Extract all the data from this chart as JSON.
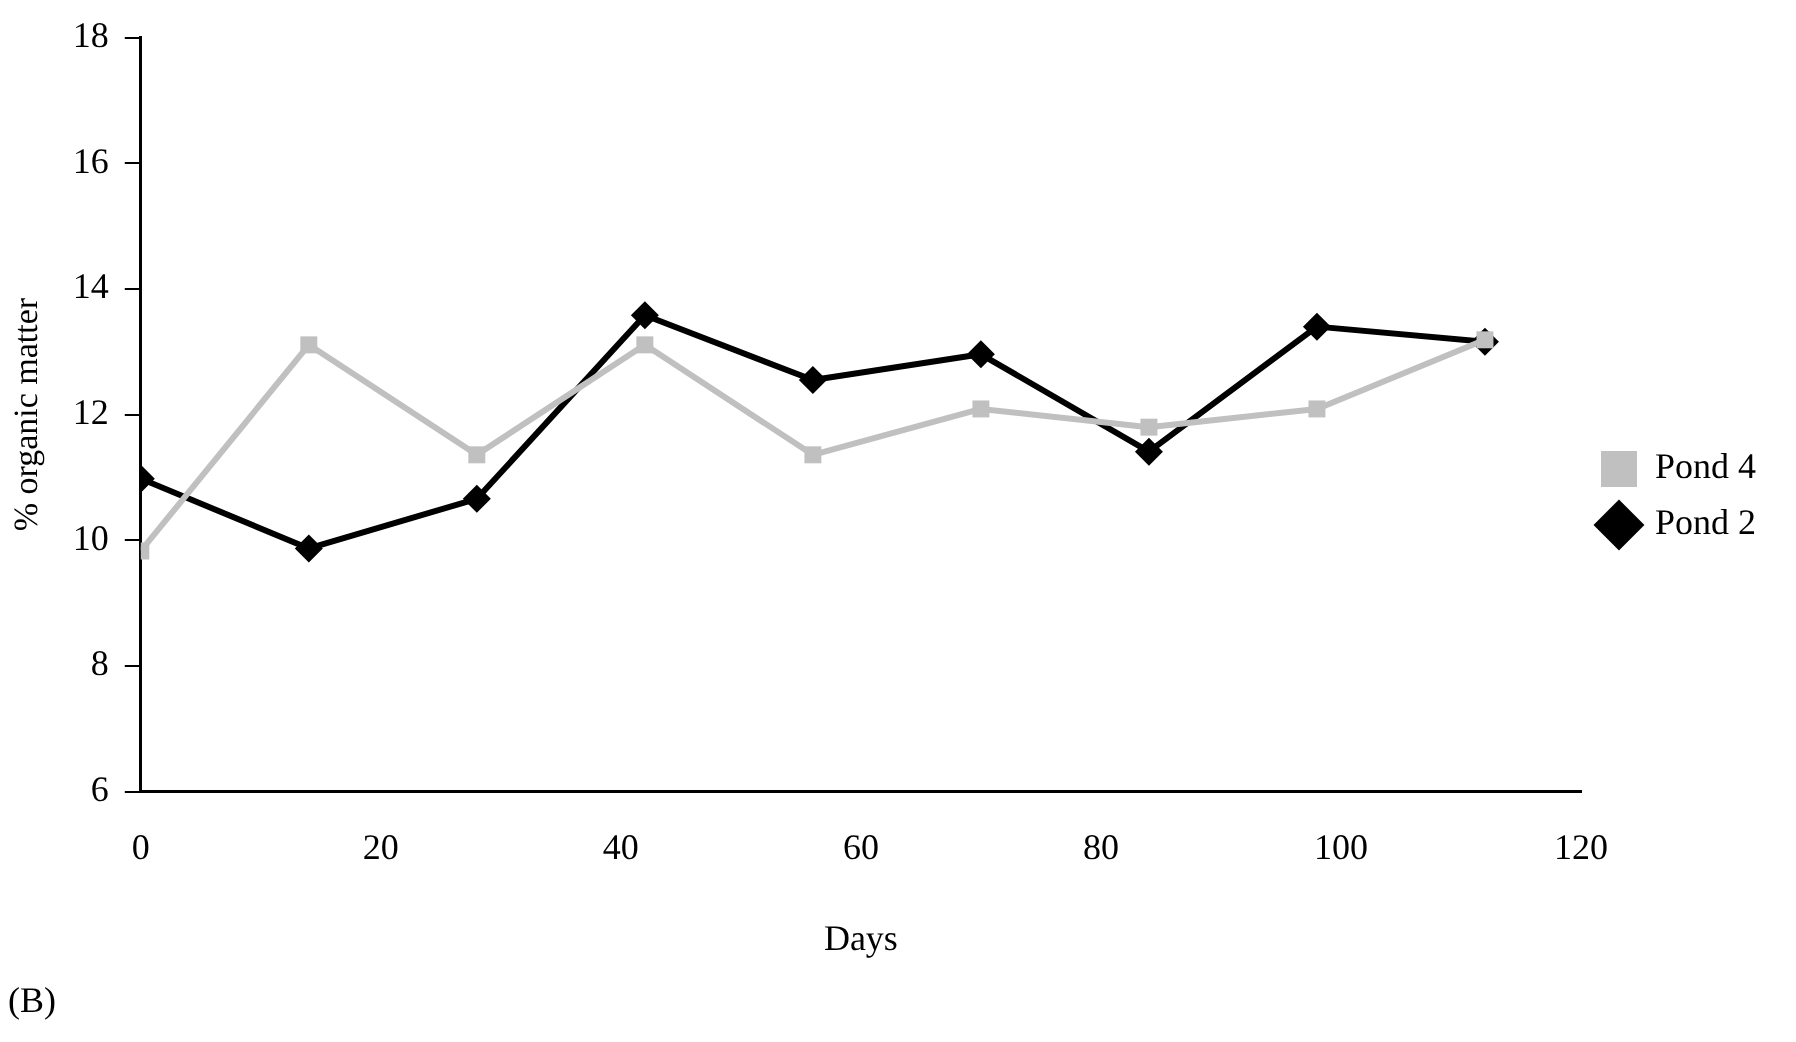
{
  "chart_data": {
    "type": "line",
    "xlabel": "Days",
    "ylabel": "% organic matter",
    "x": [
      0,
      14,
      28,
      42,
      56,
      70,
      84,
      98,
      112
    ],
    "series": [
      {
        "name": "Pond 2",
        "color": "#000000",
        "marker": "diamond",
        "values": [
          10.98,
          9.87,
          10.66,
          13.58,
          12.55,
          12.96,
          11.41,
          13.4,
          13.16
        ]
      },
      {
        "name": "Pond 4",
        "color": "#c0c0c0",
        "marker": "square",
        "values": [
          9.83,
          13.11,
          11.36,
          13.11,
          11.36,
          12.09,
          11.8,
          12.09,
          13.19
        ]
      }
    ],
    "xlim": [
      0,
      120
    ],
    "xticks": [
      0,
      20,
      40,
      60,
      80,
      100,
      120
    ],
    "ylim": [
      6,
      18
    ],
    "yticks": [
      6,
      8,
      10,
      12,
      14,
      16,
      18
    ],
    "grid": false,
    "legend": "right",
    "annotations": [
      "(B)"
    ]
  }
}
